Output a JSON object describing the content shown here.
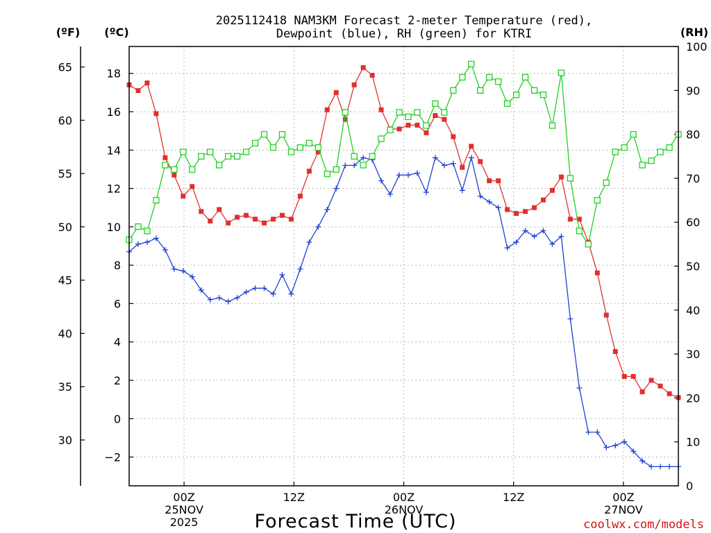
{
  "chart_data": {
    "type": "line",
    "title_line1": "2025112418 NAM3KM Forecast 2-meter Temperature (red),",
    "title_line2": "Dewpoint (blue), RH (green) for KTRI",
    "left_unit_f": "(ºF)",
    "left_unit_c": "(ºC)",
    "right_unit": "(RH)",
    "xlabel": "Forecast Time (UTC)",
    "credit": "coolwx.com/models",
    "x_range_hours": [
      18,
      78
    ],
    "x_ticks": [
      {
        "hour": 24,
        "lines": [
          "00Z",
          "25NOV",
          "2025"
        ]
      },
      {
        "hour": 36,
        "lines": [
          "12Z"
        ]
      },
      {
        "hour": 48,
        "lines": [
          "00Z",
          "26NOV"
        ]
      },
      {
        "hour": 60,
        "lines": [
          "12Z"
        ]
      },
      {
        "hour": 72,
        "lines": [
          "00Z",
          "27NOV"
        ]
      }
    ],
    "ylim_c": [
      -3.5,
      19.4
    ],
    "yticks_c": [
      -2,
      0,
      2,
      4,
      6,
      8,
      10,
      12,
      14,
      16,
      18
    ],
    "yticks_f": [
      30,
      35,
      40,
      45,
      50,
      55,
      60,
      65
    ],
    "ylim_rh": [
      0,
      100
    ],
    "yticks_rh": [
      0,
      10,
      20,
      30,
      40,
      50,
      60,
      70,
      80,
      90,
      100
    ],
    "colors": {
      "temperature": "#e03030",
      "dewpoint": "#2040d0",
      "rh": "#20d020",
      "grid": "#a0a0a0"
    },
    "series": [
      {
        "name": "Temperature",
        "unit": "C",
        "marker": "filled-square",
        "values": [
          17.4,
          17.1,
          17.5,
          15.9,
          13.6,
          12.7,
          11.6,
          12.1,
          10.8,
          10.3,
          10.9,
          10.2,
          10.5,
          10.6,
          10.4,
          10.2,
          10.4,
          10.6,
          10.4,
          11.6,
          12.9,
          13.9,
          16.1,
          17.0,
          15.6,
          17.4,
          18.3,
          17.9,
          16.1,
          15.1,
          15.1,
          15.3,
          15.3,
          14.9,
          15.8,
          15.6,
          14.7,
          13.1,
          14.2,
          13.4,
          12.4,
          12.4,
          10.9,
          10.7,
          10.8,
          11.0,
          11.4,
          11.9,
          12.6,
          10.4,
          10.4,
          9.2,
          7.6,
          5.4,
          3.5,
          2.2,
          2.2,
          1.4,
          2.0,
          1.7,
          1.3,
          1.1
        ]
      },
      {
        "name": "Dewpoint",
        "unit": "C",
        "marker": "plus",
        "values": [
          8.7,
          9.1,
          9.2,
          9.4,
          8.8,
          7.8,
          7.7,
          7.4,
          6.7,
          6.2,
          6.3,
          6.1,
          6.3,
          6.6,
          6.8,
          6.8,
          6.5,
          7.5,
          6.5,
          7.8,
          9.2,
          10.0,
          10.9,
          12.0,
          13.2,
          13.2,
          13.6,
          13.5,
          12.4,
          11.7,
          12.7,
          12.7,
          12.8,
          11.8,
          13.6,
          13.2,
          13.3,
          11.9,
          13.6,
          11.6,
          11.3,
          11.0,
          8.9,
          9.2,
          9.8,
          9.5,
          9.8,
          9.1,
          9.5,
          5.2,
          1.6,
          -0.7,
          -0.7,
          -1.5,
          -1.4,
          -1.2,
          -1.7,
          -2.2,
          -2.5,
          -2.5,
          -2.5,
          -2.5
        ]
      },
      {
        "name": "RH",
        "unit": "%",
        "marker": "open-square",
        "values": [
          56,
          59,
          58,
          65,
          73,
          72,
          76,
          72,
          75,
          76,
          73,
          75,
          75,
          76,
          78,
          80,
          77,
          80,
          76,
          77,
          78,
          77,
          71,
          72,
          85,
          75,
          73,
          75,
          79,
          81,
          85,
          84,
          85,
          82,
          87,
          85,
          90,
          93,
          96,
          90,
          93,
          92,
          87,
          89,
          93,
          90,
          89,
          82,
          94,
          70,
          58,
          55,
          65,
          69,
          76,
          77,
          80,
          73,
          74,
          76,
          77,
          80
        ]
      }
    ]
  }
}
